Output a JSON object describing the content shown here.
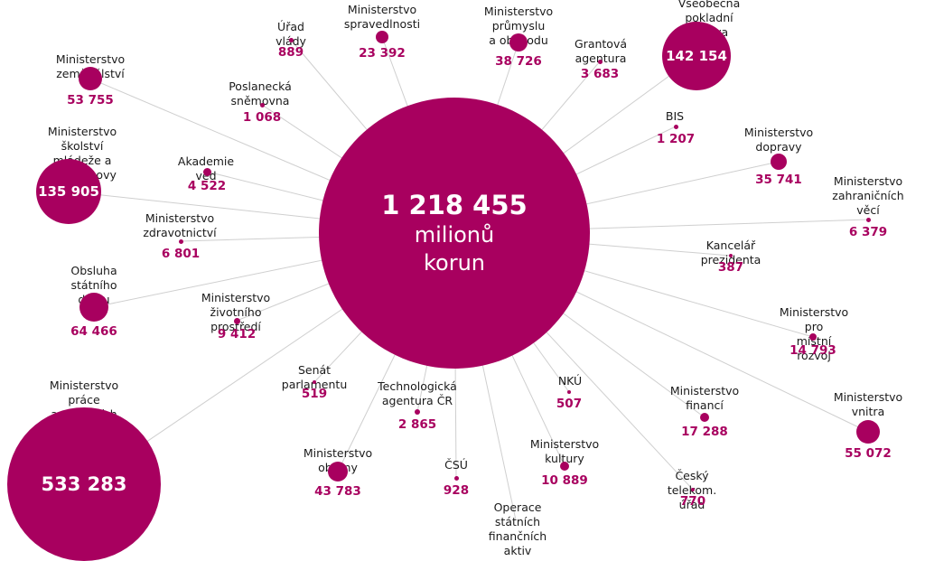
{
  "colors": {
    "accent": "#a8005f",
    "line": "#cfcfcf",
    "text": "#1a1a1a"
  },
  "center": {
    "value": "1 218 455",
    "unit_line1": "milionů",
    "unit_line2": "korun"
  },
  "nodes": [
    {
      "label": "Úřad vlády",
      "value": "889"
    },
    {
      "label": "Ministerstvo\nspravedlnosti",
      "value": "23 392"
    },
    {
      "label": "Ministerstvo průmyslu\na obchodu",
      "value": "38 726"
    },
    {
      "label": "Grantová\nagentura",
      "value": "3 683"
    },
    {
      "label": "Všeobecná pokladní\nspráva",
      "value": "142 154"
    },
    {
      "label": "Ministerstvo zemědělství",
      "value": "53 755"
    },
    {
      "label": "Poslanecká\nsněmovna",
      "value": "1 068"
    },
    {
      "label": "BIS",
      "value": "1 207"
    },
    {
      "label": "Ministerstvo\ndopravy",
      "value": "35 741"
    },
    {
      "label": "Ministerstvo školství\nmládeže a tělovýchovy",
      "value": "135 905"
    },
    {
      "label": "Akademie věd",
      "value": "4 522"
    },
    {
      "label": "Ministerstvo\nzahraničních\nvěcí",
      "value": "6 379"
    },
    {
      "label": "Ministerstvo\nzdravotnictví",
      "value": "6 801"
    },
    {
      "label": "Kancelář prezidenta",
      "value": "387"
    },
    {
      "label": "Obsluha státního\ndluhu",
      "value": "64 466"
    },
    {
      "label": "Ministerstvo\nživotního prostředí",
      "value": "9 412"
    },
    {
      "label": "Ministerstvo pro\nmístní rozvoj",
      "value": "14 793"
    },
    {
      "label": "Senát parlamentu",
      "value": "519"
    },
    {
      "label": "Technologická\nagentura ČR",
      "value": "2 865"
    },
    {
      "label": "NKÚ",
      "value": "507"
    },
    {
      "label": "Ministerstvo\nfinancí",
      "value": "17 288"
    },
    {
      "label": "Ministerstvo\nvnitra",
      "value": "55 072"
    },
    {
      "label": "Ministerstvo práce\na sociálních věcí",
      "value": "533 283"
    },
    {
      "label": "Ministerstvo obrany",
      "value": "43 783"
    },
    {
      "label": "ČSÚ",
      "value": "928"
    },
    {
      "label": "Ministerstvo\nkultury",
      "value": "10 889"
    },
    {
      "label": "Český telekom. úřad",
      "value": "770"
    },
    {
      "label": "Operace státních\nfinančních aktiv",
      "value": ""
    }
  ]
}
